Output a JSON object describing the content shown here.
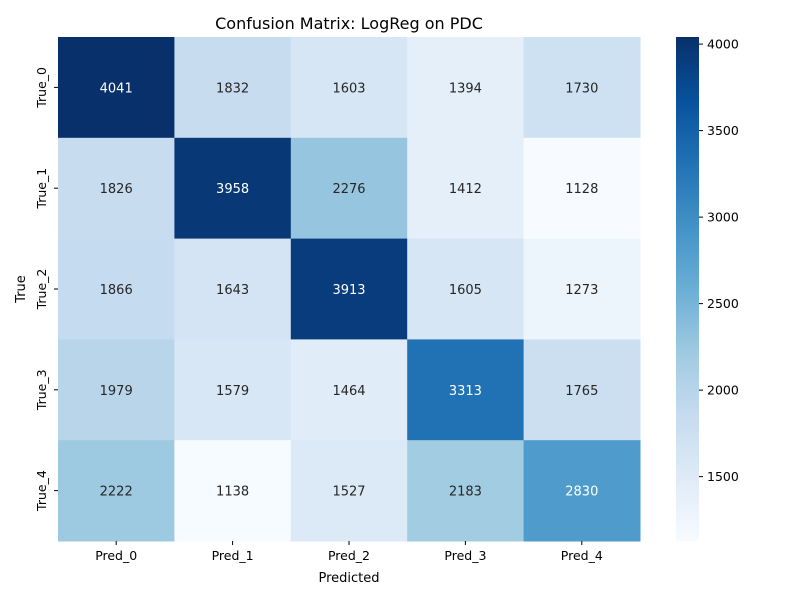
{
  "chart_data": {
    "type": "heatmap",
    "title": "Confusion Matrix: LogReg on PDC",
    "xlabel": "Predicted",
    "ylabel": "True",
    "x_categories": [
      "Pred_0",
      "Pred_1",
      "Pred_2",
      "Pred_3",
      "Pred_4"
    ],
    "y_categories": [
      "True_0",
      "True_1",
      "True_2",
      "True_3",
      "True_4"
    ],
    "values": [
      [
        4041,
        1832,
        1603,
        1394,
        1730
      ],
      [
        1826,
        3958,
        2276,
        1412,
        1128
      ],
      [
        1866,
        1643,
        3913,
        1605,
        1273
      ],
      [
        1979,
        1579,
        1464,
        3313,
        1765
      ],
      [
        2222,
        1138,
        1527,
        2183,
        2830
      ]
    ],
    "colorbar": {
      "colormap": "Blues",
      "range": [
        1128,
        4041
      ],
      "ticks": [
        1500,
        2000,
        2500,
        3000,
        3500,
        4000
      ]
    }
  }
}
